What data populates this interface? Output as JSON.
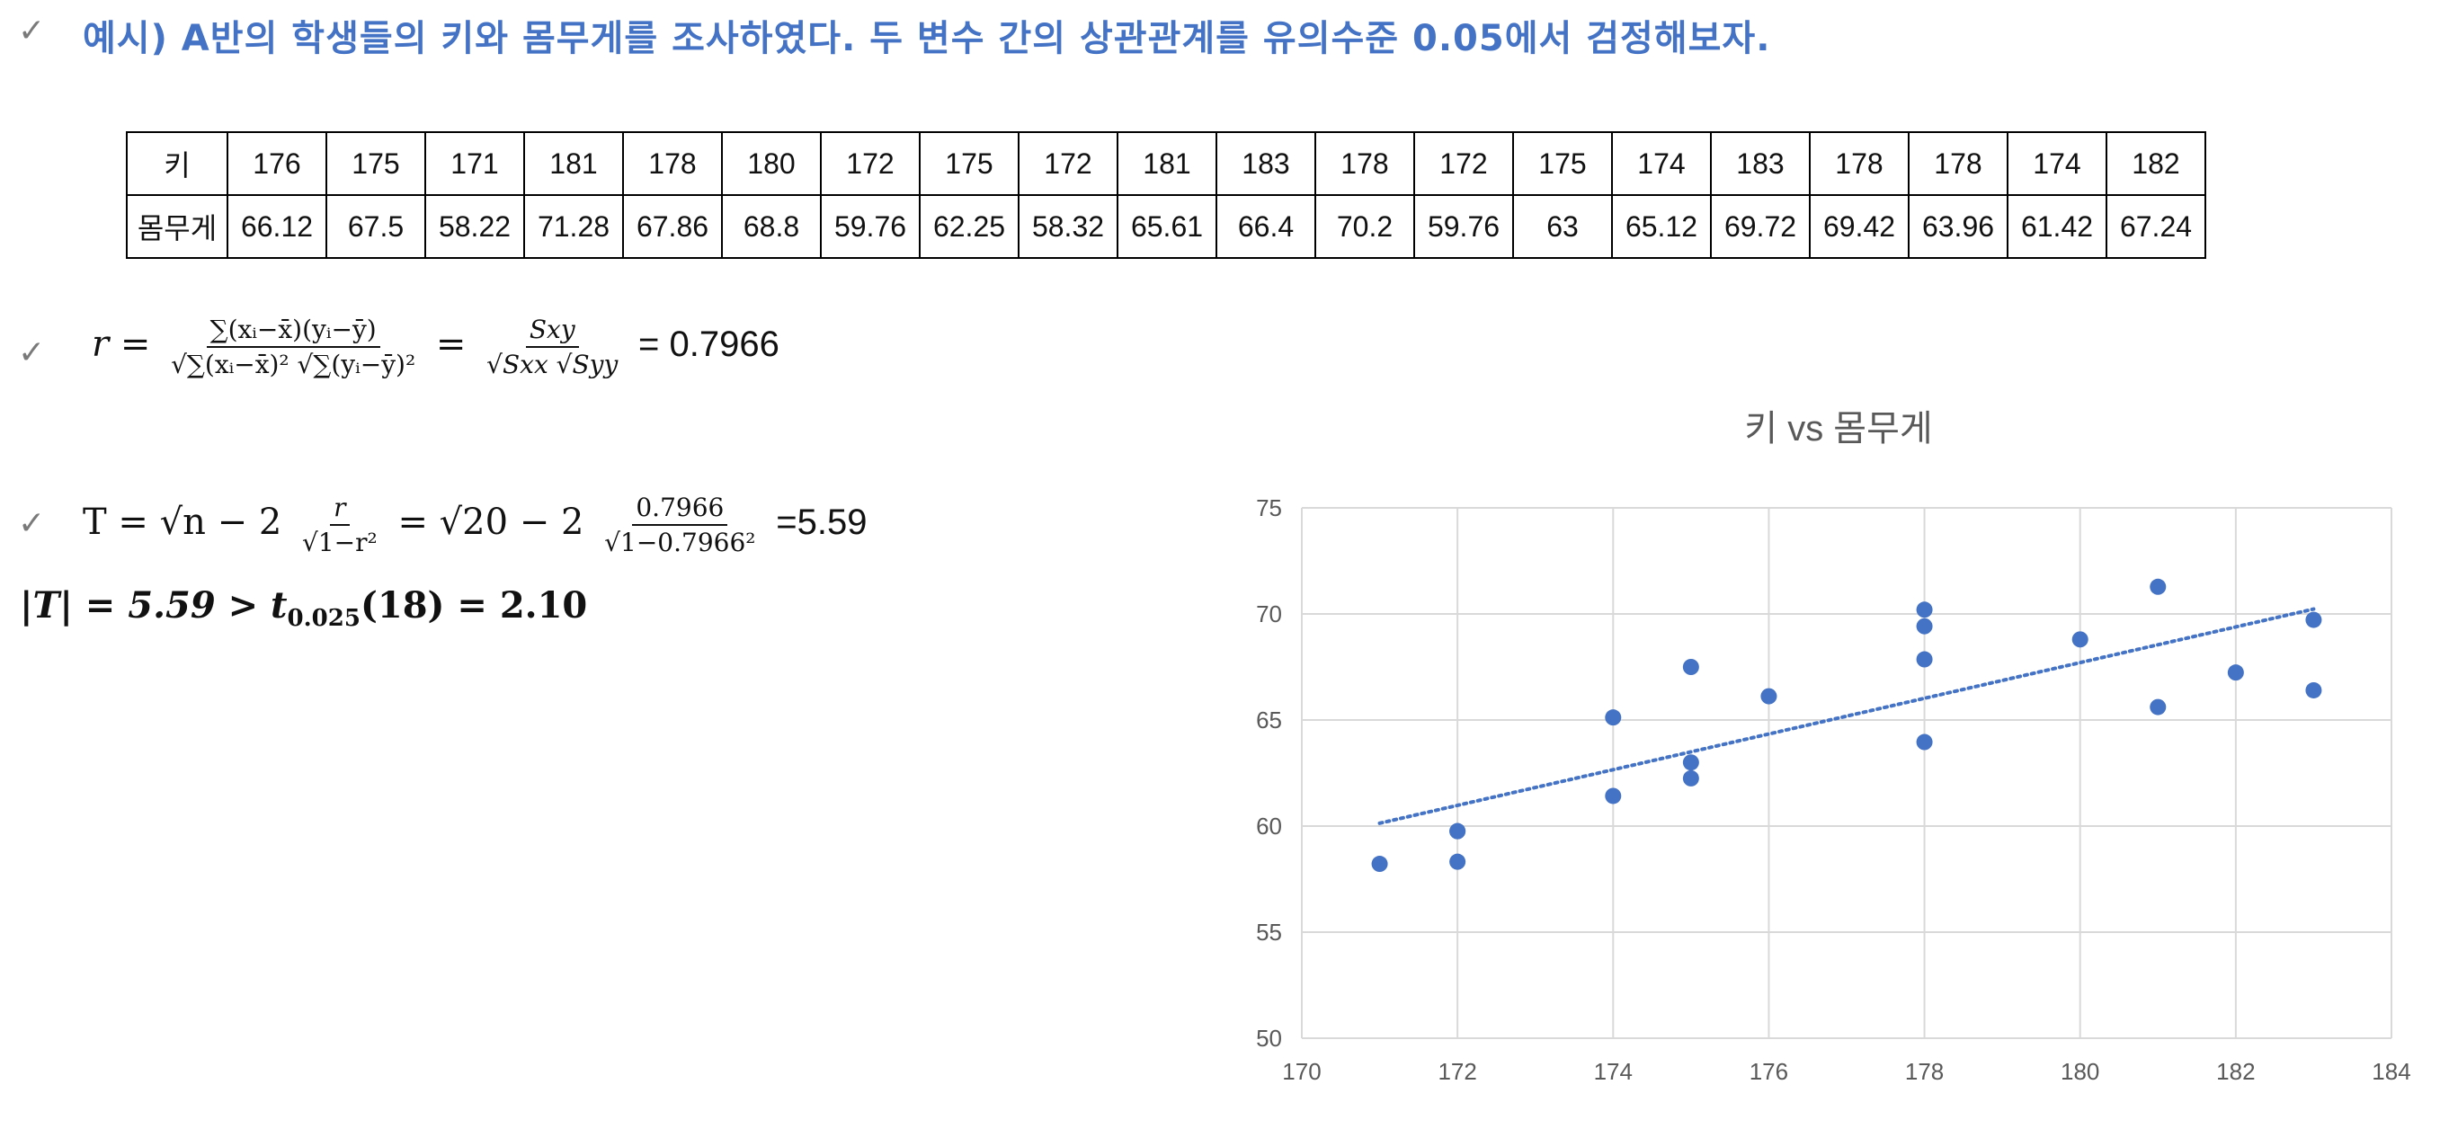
{
  "heading": "예시) A반의 학생들의 키와 몸무게를 조사하였다. 두 변수 간의 상관관계를 유의수준 0.05에서 검정해보자.",
  "checkmark": "✓",
  "table": {
    "row_headers": [
      "키",
      "몸무게"
    ],
    "heights": [
      "176",
      "175",
      "171",
      "181",
      "178",
      "180",
      "172",
      "175",
      "172",
      "181",
      "183",
      "178",
      "172",
      "175",
      "174",
      "183",
      "178",
      "178",
      "174",
      "182"
    ],
    "weights": [
      "66.12",
      "67.5",
      "58.22",
      "71.28",
      "67.86",
      "68.8",
      "59.76",
      "62.25",
      "58.32",
      "65.61",
      "66.4",
      "70.2",
      "59.76",
      "63",
      "65.12",
      "69.72",
      "69.42",
      "63.96",
      "61.42",
      "67.24"
    ]
  },
  "formula_r": {
    "lhs": "r =",
    "num1": "∑(xᵢ−x̄)(yᵢ−ȳ)",
    "den1": "√∑(xᵢ−x̄)² √∑(yᵢ−ȳ)²",
    "eq": "=",
    "num2": "Sxy",
    "den2": "√Sxx √Syy",
    "result": "= 0.7966"
  },
  "formula_t": {
    "lhs": "T = √n − 2",
    "num1": "r",
    "den1": "√1−r²",
    "mid": "= √20 − 2",
    "num2": "0.7966",
    "den2": "√1−0.7966²",
    "result": "=5.59"
  },
  "conclusion": {
    "left": "|T| = 5.59 >",
    "t": "t",
    "sub": "0.025",
    "right": "(18) = 2.10"
  },
  "chart_data": {
    "type": "scatter",
    "title": "키 vs 몸무게",
    "xlabel": "",
    "ylabel": "",
    "xlim": [
      170,
      184
    ],
    "ylim": [
      50,
      75
    ],
    "xticks": [
      170,
      172,
      174,
      176,
      178,
      180,
      182,
      184
    ],
    "yticks": [
      50,
      55,
      60,
      65,
      70,
      75
    ],
    "grid": true,
    "trendline": "linear",
    "point_color": "#4472c4",
    "points": [
      [
        176,
        66.12
      ],
      [
        175,
        67.5
      ],
      [
        171,
        58.22
      ],
      [
        181,
        71.28
      ],
      [
        178,
        67.86
      ],
      [
        180,
        68.8
      ],
      [
        172,
        59.76
      ],
      [
        175,
        62.25
      ],
      [
        172,
        58.32
      ],
      [
        181,
        65.61
      ],
      [
        183,
        66.4
      ],
      [
        178,
        70.2
      ],
      [
        172,
        59.76
      ],
      [
        175,
        63
      ],
      [
        174,
        65.12
      ],
      [
        183,
        69.72
      ],
      [
        178,
        69.42
      ],
      [
        178,
        63.96
      ],
      [
        174,
        61.42
      ],
      [
        182,
        67.24
      ]
    ]
  }
}
